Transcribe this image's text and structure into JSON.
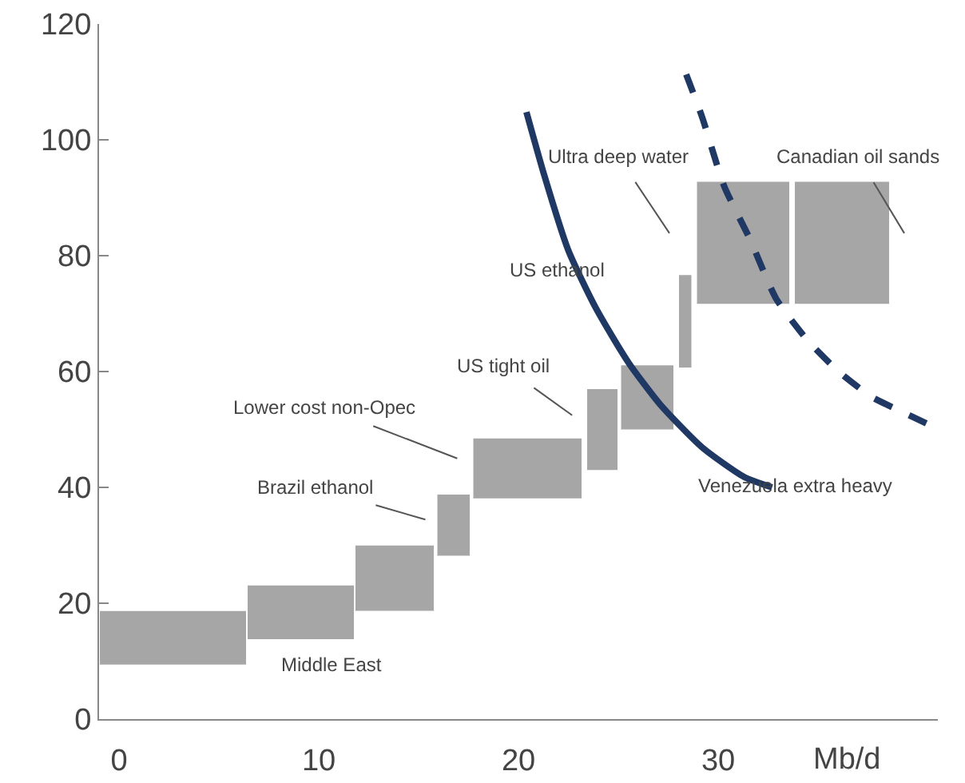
{
  "chart_data": {
    "type": "area",
    "xlabel": "Mb/d",
    "xlim": [
      -1,
      41
    ],
    "xticks": [
      0,
      10,
      20,
      30
    ],
    "ylim": [
      0,
      120
    ],
    "yticks": [
      0,
      20,
      40,
      60,
      80,
      100,
      120
    ],
    "grid": false,
    "series": [
      {
        "color": "#a6a6a6",
        "x": [
          -1,
          -1,
          6.4,
          6.4
        ],
        "values": [
          9.4,
          18.8,
          18.8,
          9.4
        ]
      },
      {
        "color": "#a6a6a6",
        "x": [
          6.4,
          6.4,
          11.8,
          11.8
        ],
        "values": [
          13.8,
          23.2,
          23.2,
          13.8
        ]
      },
      {
        "color": "#a6a6a6",
        "x": [
          11.8,
          11.8,
          15.8,
          15.8
        ],
        "values": [
          18.7,
          30.1,
          30.1,
          18.7
        ]
      },
      {
        "color": "#a6a6a6",
        "x": [
          15.9,
          15.9,
          17.6,
          17.6
        ],
        "values": [
          28.2,
          38.9,
          38.9,
          28.2
        ]
      },
      {
        "color": "#a6a6a6",
        "x": [
          17.7,
          17.7,
          23.2,
          23.2
        ],
        "values": [
          38.1,
          48.6,
          48.6,
          38.1
        ]
      },
      {
        "color": "#a6a6a6",
        "x": [
          23.4,
          23.4,
          25.0,
          25.0
        ],
        "values": [
          43.0,
          57.1,
          57.1,
          43.0
        ]
      },
      {
        "color": "#a6a6a6",
        "x": [
          25.1,
          25.1,
          27.8,
          27.8
        ],
        "values": [
          50.0,
          61.2,
          61.2,
          50.0
        ]
      },
      {
        "color": "#a6a6a6",
        "x": [
          28.0,
          28.0,
          28.7,
          28.7
        ],
        "values": [
          60.7,
          76.8,
          76.8,
          60.7
        ]
      },
      {
        "color": "#a6a6a6",
        "x": [
          28.9,
          28.9,
          33.6,
          33.6
        ],
        "values": [
          71.7,
          92.9,
          92.9,
          71.7
        ]
      },
      {
        "color": "#a6a6a6",
        "x": [
          33.8,
          33.8,
          38.6,
          38.6
        ],
        "values": [
          71.7,
          92.9,
          92.9,
          71.7
        ]
      },
      {
        "type": "line",
        "color": "#1f3864",
        "line_style": "solid",
        "x": [
          20.4,
          21.3,
          22.5,
          23.9,
          25.5,
          27.1,
          29.2,
          31.3,
          32.7
        ],
        "values": [
          104.8,
          93.8,
          80.9,
          70.8,
          61.6,
          54.3,
          46.9,
          41.8,
          40.0
        ]
      },
      {
        "type": "line",
        "color": "#1f3864",
        "line_style": "dashed",
        "x": [
          28.4,
          29.2,
          30.3,
          31.6,
          32.9,
          34.5,
          36.1,
          37.7,
          39.3,
          40.7
        ],
        "values": [
          111.3,
          103.9,
          92.0,
          82.8,
          72.6,
          65.3,
          59.8,
          55.6,
          52.9,
          50.6
        ]
      }
    ],
    "annotations": [
      "Middle East",
      "Brazil ethanol",
      "Lower cost non-Opec",
      "US tight oil",
      "US ethanol",
      "Ultra deep water",
      "Canadian oil sands",
      "Venezuela extra heavy"
    ]
  }
}
